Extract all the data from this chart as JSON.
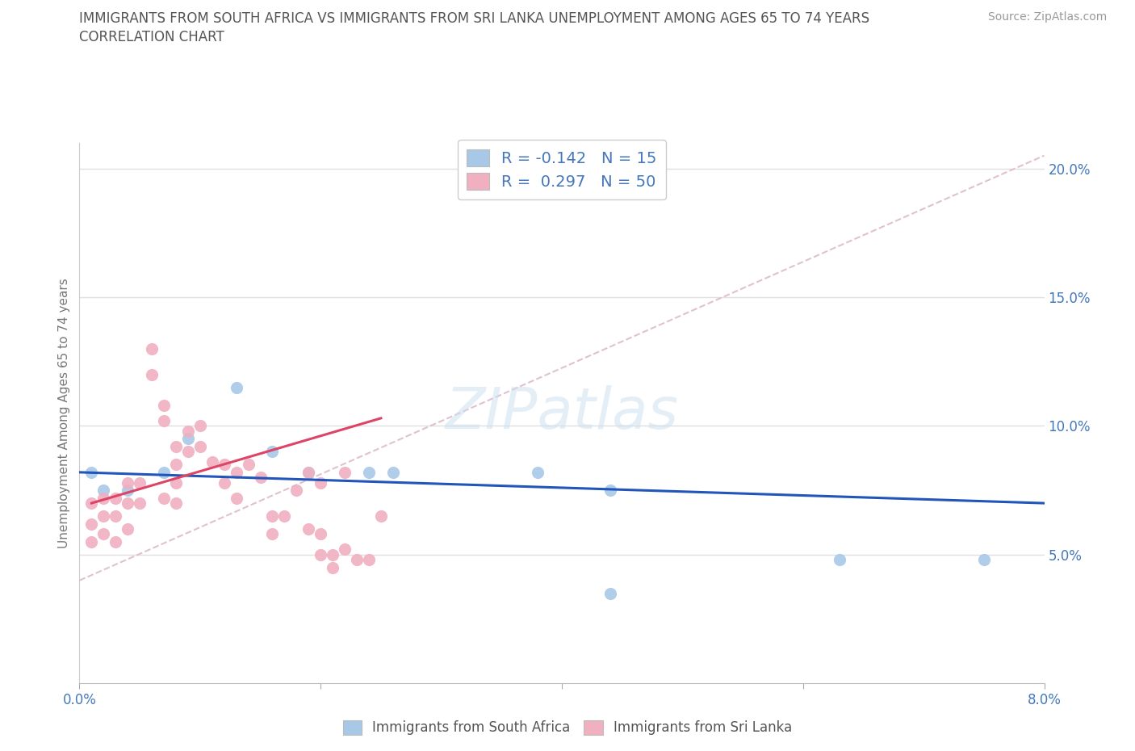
{
  "title_line1": "IMMIGRANTS FROM SOUTH AFRICA VS IMMIGRANTS FROM SRI LANKA UNEMPLOYMENT AMONG AGES 65 TO 74 YEARS",
  "title_line2": "CORRELATION CHART",
  "source_text": "Source: ZipAtlas.com",
  "ylabel": "Unemployment Among Ages 65 to 74 years",
  "xlim": [
    0.0,
    0.08
  ],
  "ylim": [
    0.0,
    0.21
  ],
  "y_ticks_right": [
    0.05,
    0.1,
    0.15,
    0.2
  ],
  "y_tick_labels_right": [
    "5.0%",
    "10.0%",
    "15.0%",
    "20.0%"
  ],
  "watermark": "ZIPatlas",
  "blue_color": "#a8c8e8",
  "pink_color": "#f0b0c0",
  "blue_line_color": "#2255bb",
  "pink_line_color": "#dd4466",
  "dashed_line_color": "#ddbbcc",
  "R_blue": -0.142,
  "N_blue": 15,
  "R_pink": 0.297,
  "N_pink": 50,
  "blue_scatter_x": [
    0.001,
    0.002,
    0.004,
    0.007,
    0.009,
    0.013,
    0.016,
    0.019,
    0.024,
    0.026,
    0.038,
    0.044,
    0.044,
    0.063,
    0.075
  ],
  "blue_scatter_y": [
    0.082,
    0.075,
    0.075,
    0.082,
    0.095,
    0.115,
    0.09,
    0.082,
    0.082,
    0.082,
    0.082,
    0.035,
    0.075,
    0.048,
    0.048
  ],
  "pink_scatter_x": [
    0.001,
    0.001,
    0.001,
    0.002,
    0.002,
    0.002,
    0.003,
    0.003,
    0.003,
    0.004,
    0.004,
    0.004,
    0.005,
    0.005,
    0.006,
    0.006,
    0.007,
    0.007,
    0.007,
    0.008,
    0.008,
    0.008,
    0.008,
    0.009,
    0.009,
    0.01,
    0.01,
    0.011,
    0.012,
    0.012,
    0.013,
    0.013,
    0.014,
    0.015,
    0.016,
    0.016,
    0.017,
    0.018,
    0.019,
    0.02,
    0.02,
    0.021,
    0.021,
    0.022,
    0.023,
    0.024,
    0.025,
    0.019,
    0.02,
    0.022
  ],
  "pink_scatter_y": [
    0.07,
    0.062,
    0.055,
    0.072,
    0.065,
    0.058,
    0.072,
    0.065,
    0.055,
    0.078,
    0.07,
    0.06,
    0.078,
    0.07,
    0.13,
    0.12,
    0.108,
    0.102,
    0.072,
    0.092,
    0.085,
    0.078,
    0.07,
    0.098,
    0.09,
    0.1,
    0.092,
    0.086,
    0.085,
    0.078,
    0.082,
    0.072,
    0.085,
    0.08,
    0.065,
    0.058,
    0.065,
    0.075,
    0.06,
    0.058,
    0.05,
    0.05,
    0.045,
    0.052,
    0.048,
    0.048,
    0.065,
    0.082,
    0.078,
    0.082
  ],
  "legend_label_blue": "Immigrants from South Africa",
  "legend_label_pink": "Immigrants from Sri Lanka",
  "background_color": "#ffffff",
  "grid_color": "#e0e0e0"
}
